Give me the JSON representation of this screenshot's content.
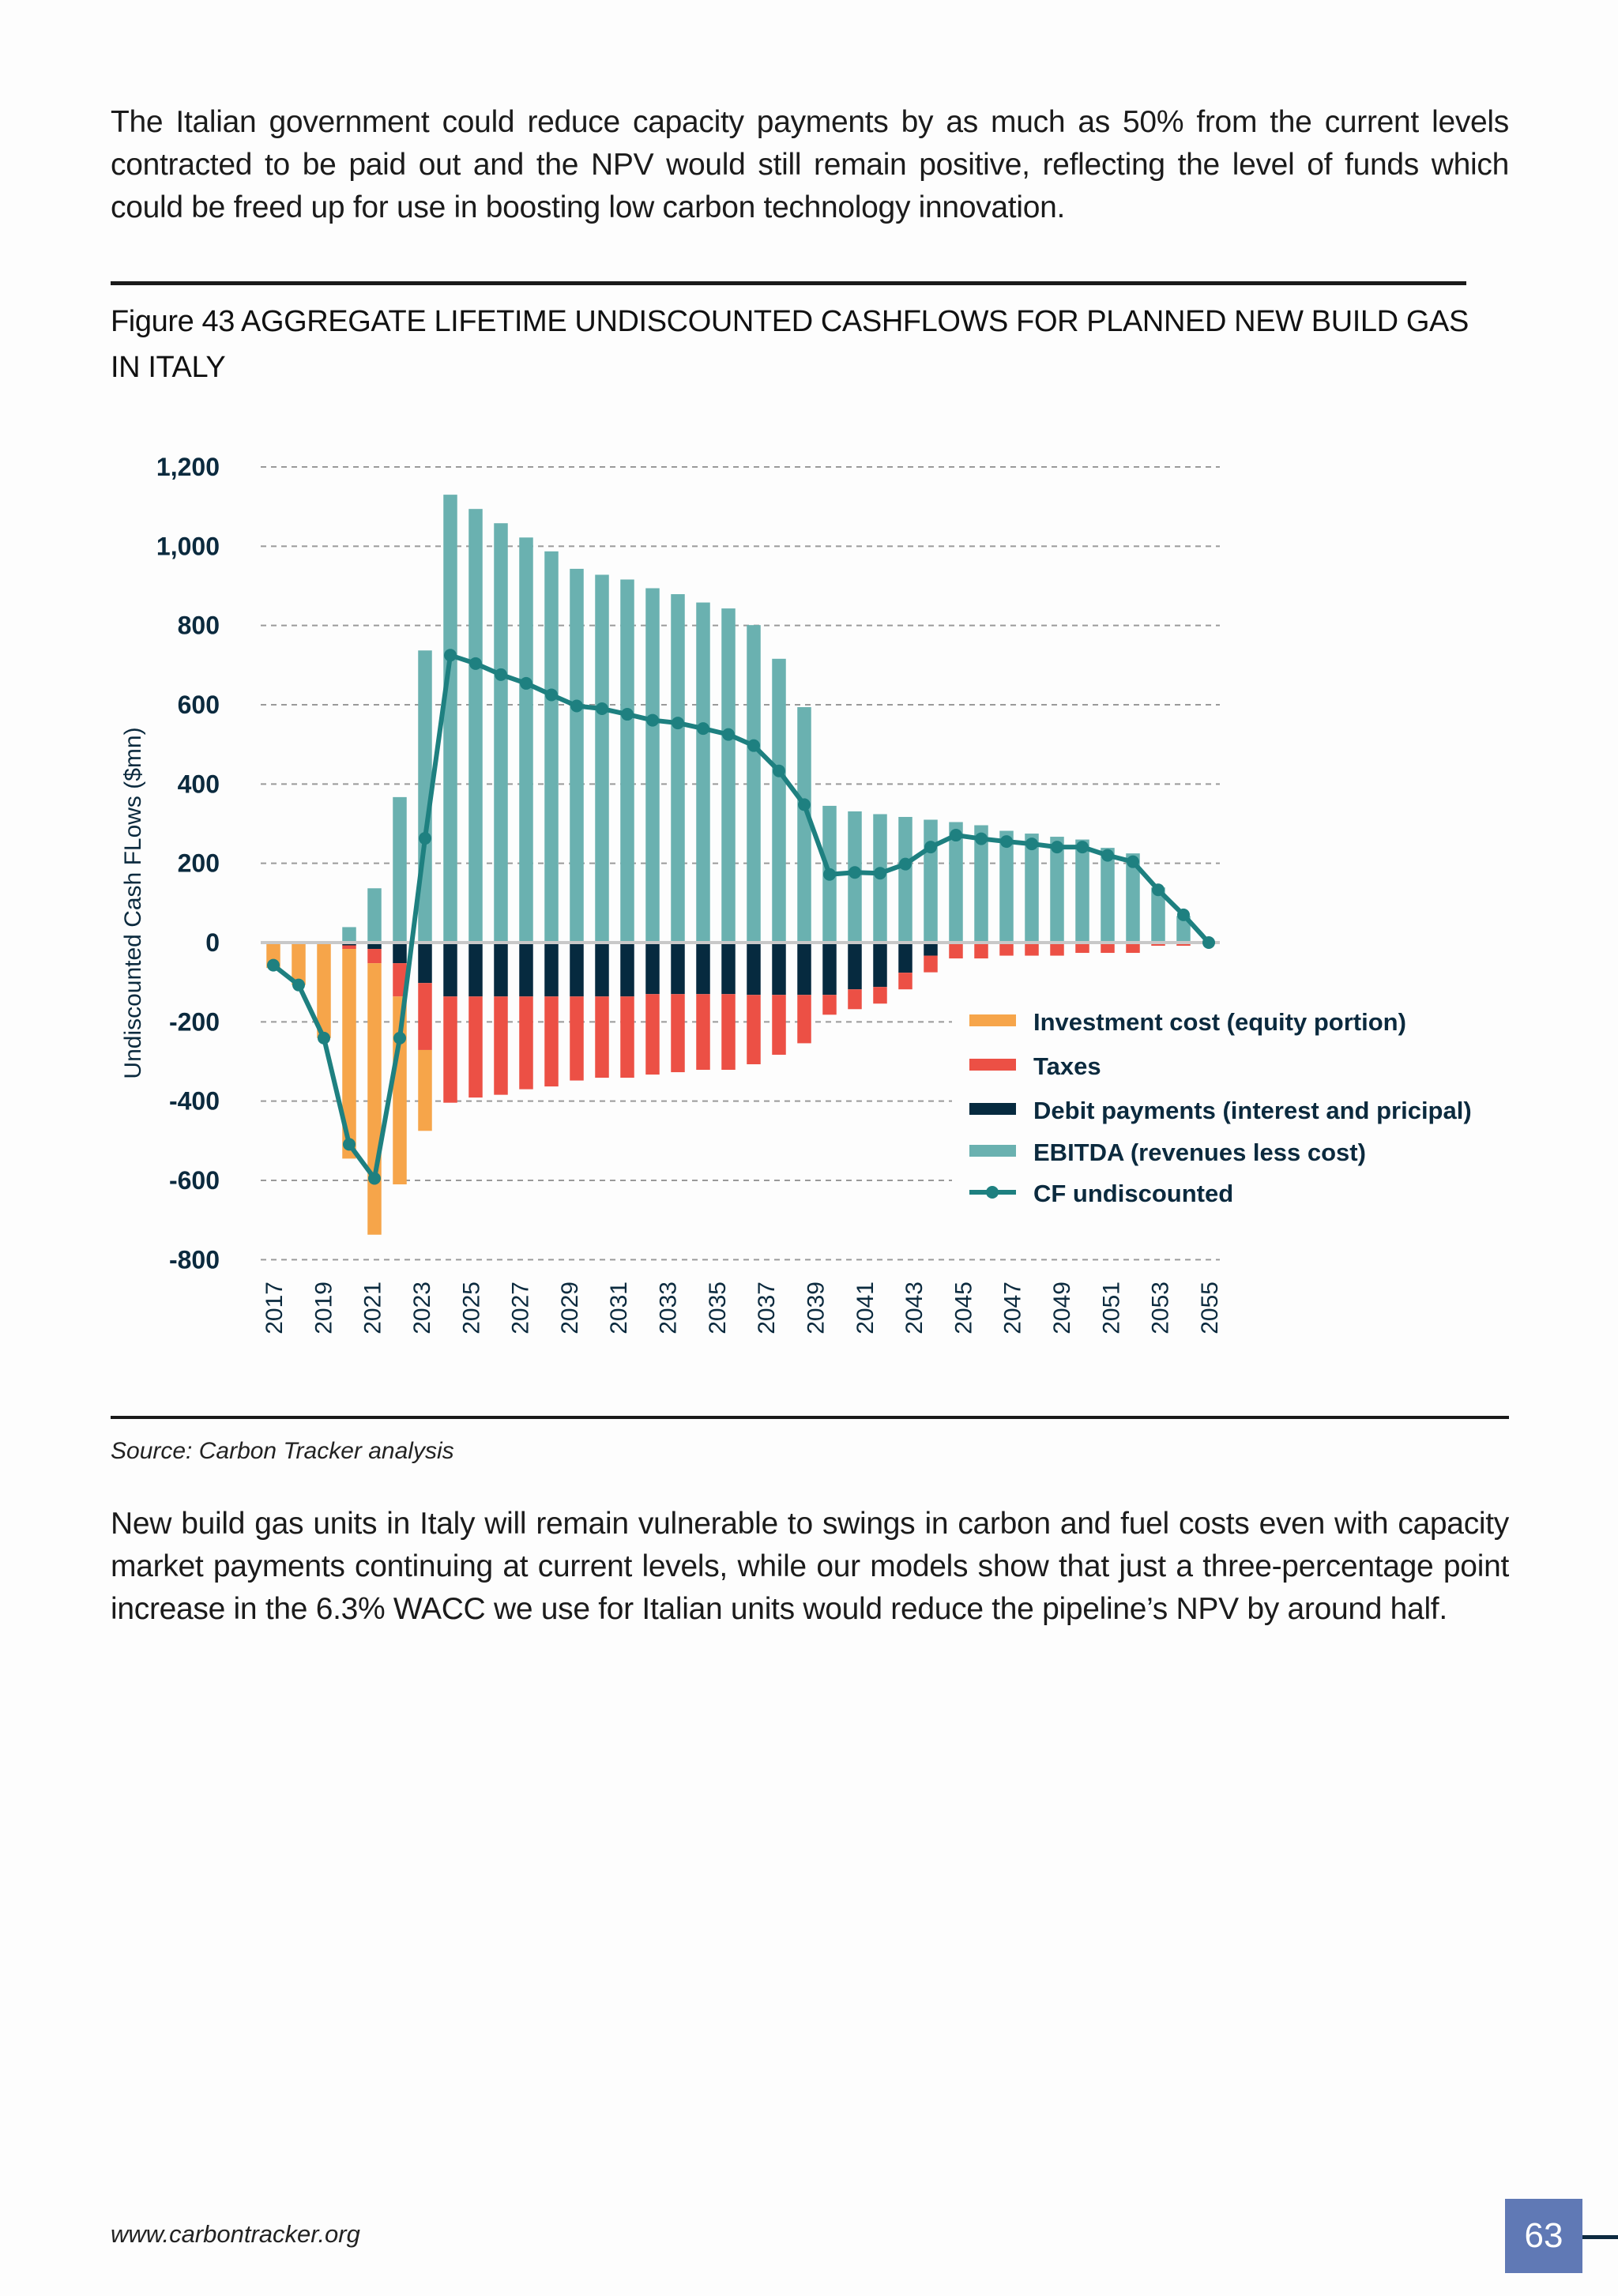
{
  "intro_paragraph": "The Italian government could reduce capacity payments by as much as 50% from the current levels contracted to be paid out and the NPV would still remain positive, reflecting the level of funds which could be freed up for use in boosting low carbon technology innovation.",
  "figure_title": "Figure 43 AGGREGATE LIFETIME UNDISCOUNTED CASHFLOWS FOR PLANNED NEW BUILD GAS IN ITALY",
  "source": "Source: Carbon Tracker analysis",
  "closing_paragraph": "New build gas units in Italy will remain vulnerable to swings in carbon and fuel costs even with capacity market payments continuing at current levels, while our models show that just a three-percentage point increase in the 6.3% WACC we use for Italian units would reduce the pipeline’s NPV by around half.",
  "footer": {
    "url": "www.carbontracker.org",
    "page_number": "63",
    "page_box_color": "#6079b5"
  },
  "chart_data": {
    "type": "bar",
    "stacked": true,
    "ylabel": "Undiscounted Cash FLows ($mn)",
    "ylim": [
      -800,
      1200
    ],
    "y_ticks": [
      "1,200",
      "1,000",
      "800",
      "600",
      "400",
      "200",
      "0",
      "-200",
      "-400",
      "-600",
      "-800"
    ],
    "y_tick_values": [
      1200,
      1000,
      800,
      600,
      400,
      200,
      0,
      -200,
      -400,
      -600,
      -800
    ],
    "x_tick_labels": [
      "2017",
      "2019",
      "2021",
      "2023",
      "2025",
      "2027",
      "2029",
      "2031",
      "2033",
      "2035",
      "2037",
      "2039",
      "2041",
      "2043",
      "2045",
      "2047",
      "2049",
      "2051",
      "2053",
      "2055"
    ],
    "grid": "horizontal dashed",
    "legend_position": "bottom-right",
    "categories": [
      2017,
      2018,
      2019,
      2020,
      2021,
      2022,
      2023,
      2024,
      2025,
      2026,
      2027,
      2028,
      2029,
      2030,
      2031,
      2032,
      2033,
      2034,
      2035,
      2036,
      2037,
      2038,
      2039,
      2040,
      2041,
      2042,
      2043,
      2044,
      2045,
      2046,
      2047,
      2048,
      2049,
      2050,
      2051,
      2052,
      2053,
      2054
    ],
    "series": [
      {
        "name": "Investment cost (equity portion)",
        "color": "#f6a54a",
        "kind": "bar",
        "values": [
          -64,
          -107,
          -241,
          -529,
          -685,
          -474,
          -204,
          0,
          0,
          0,
          0,
          0,
          0,
          0,
          0,
          0,
          0,
          0,
          0,
          0,
          0,
          0,
          0,
          0,
          0,
          0,
          0,
          0,
          0,
          0,
          0,
          0,
          0,
          0,
          0,
          0,
          0,
          0
        ]
      },
      {
        "name": "Taxes",
        "color": "#ec5045",
        "kind": "bar",
        "values": [
          0,
          0,
          0,
          -9,
          -36,
          -84,
          -169,
          -268,
          -255,
          -248,
          -234,
          -227,
          -212,
          -205,
          -205,
          -203,
          -197,
          -191,
          -191,
          -175,
          -151,
          -122,
          -50,
          -50,
          -42,
          -42,
          -42,
          -40,
          -40,
          -33,
          -33,
          -33,
          -26,
          -26,
          -26,
          -8,
          -8,
          0
        ]
      },
      {
        "name": "Debit payments (interest and pricipal)",
        "color": "#062a3f",
        "kind": "bar",
        "values": [
          0,
          0,
          0,
          -7,
          -16,
          -52,
          -102,
          -136,
          -136,
          -136,
          -136,
          -136,
          -136,
          -136,
          -136,
          -130,
          -130,
          -130,
          -130,
          -132,
          -132,
          -132,
          -132,
          -118,
          -112,
          -76,
          -33,
          0,
          0,
          0,
          0,
          0,
          0,
          0,
          0,
          0,
          0,
          0
        ]
      },
      {
        "name": "EBITDA (revenues less cost)",
        "color": "#6ab1b0",
        "kind": "bar",
        "values": [
          0,
          0,
          0,
          39,
          137,
          367,
          737,
          1130,
          1094,
          1058,
          1022,
          987,
          943,
          928,
          916,
          894,
          879,
          858,
          843,
          801,
          716,
          594,
          345,
          331,
          324,
          317,
          310,
          304,
          296,
          282,
          275,
          267,
          260,
          239,
          225,
          139,
          67,
          0
        ]
      },
      {
        "name": "CF undiscounted",
        "color": "#1e8080",
        "kind": "line",
        "values": [
          -57,
          -107,
          -241,
          -509,
          -595,
          -241,
          263,
          725,
          704,
          676,
          654,
          625,
          597,
          590,
          576,
          561,
          554,
          540,
          525,
          497,
          433,
          348,
          172,
          177,
          175,
          198,
          241,
          271,
          262,
          255,
          249,
          241,
          241,
          220,
          204,
          133,
          70,
          0
        ]
      }
    ]
  }
}
